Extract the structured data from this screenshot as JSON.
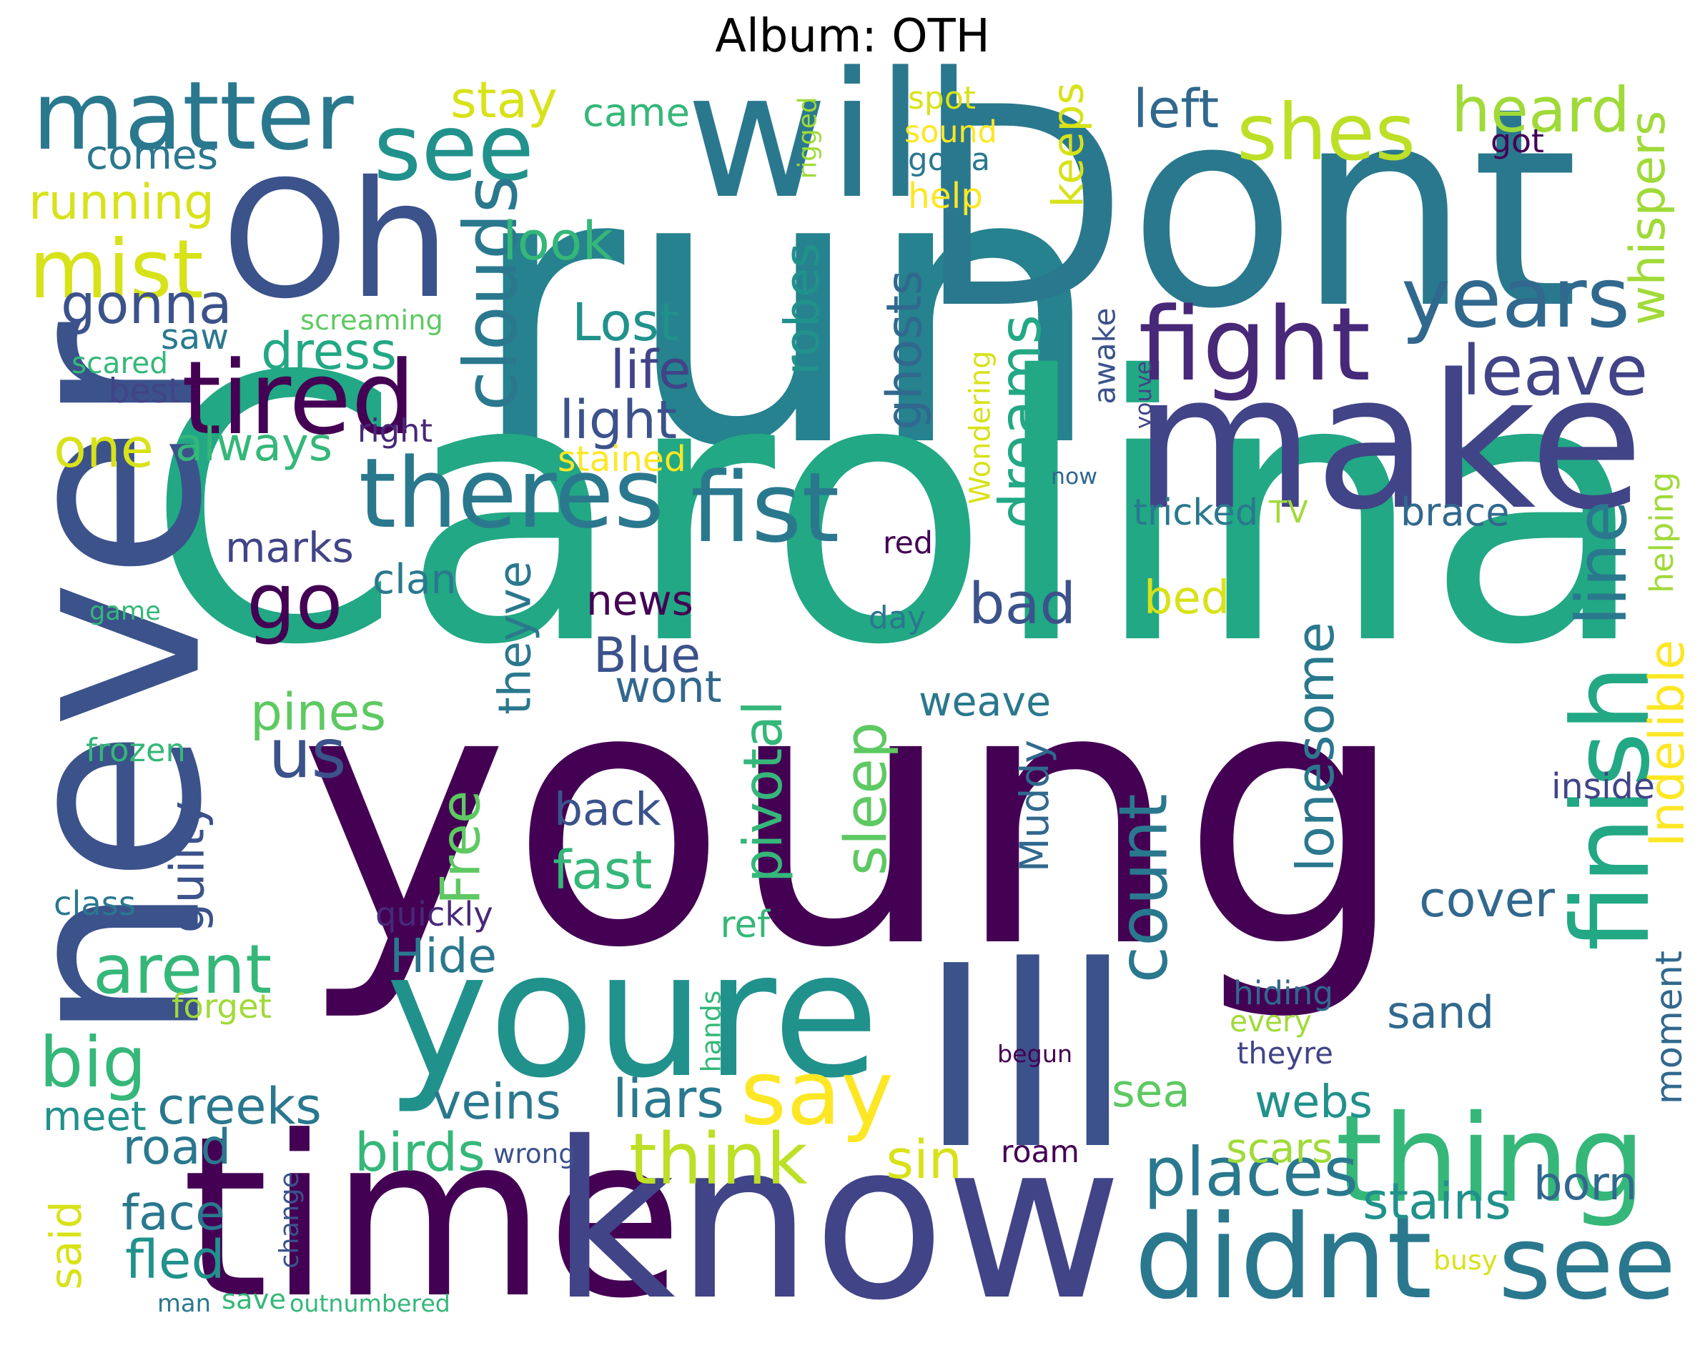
{
  "title": "Album: OTH",
  "words": [
    {
      "text": "young",
      "color": "#440154"
    },
    {
      "text": "run",
      "color": "#26828e"
    },
    {
      "text": "Carolina",
      "color": "#22a884"
    },
    {
      "text": "never",
      "color": "#3b528b"
    },
    {
      "text": "time",
      "color": "#440154"
    },
    {
      "text": "know",
      "color": "#414487"
    },
    {
      "text": "Oh",
      "color": "#3b528b"
    },
    {
      "text": "will",
      "color": "#2a788e"
    },
    {
      "text": "Dont",
      "color": "#2a788e"
    },
    {
      "text": "make",
      "color": "#414487"
    },
    {
      "text": "youre",
      "color": "#21918c"
    },
    {
      "text": "Ill",
      "color": "#3b528b"
    },
    {
      "text": "see",
      "color": "#21918c"
    },
    {
      "text": "see",
      "color": "#2a788e"
    },
    {
      "text": "didnt",
      "color": "#2a788e"
    },
    {
      "text": "thing",
      "color": "#35b779"
    },
    {
      "text": "matter",
      "color": "#2a788e"
    },
    {
      "text": "fight",
      "color": "#482878"
    },
    {
      "text": "years",
      "color": "#31688e"
    },
    {
      "text": "leave",
      "color": "#414487"
    },
    {
      "text": "shes",
      "color": "#bddf26"
    },
    {
      "text": "heard",
      "color": "#a0da39"
    },
    {
      "text": "theres",
      "color": "#2a788e"
    },
    {
      "text": "fist",
      "color": "#2a788e"
    },
    {
      "text": "tired",
      "color": "#440154"
    },
    {
      "text": "mist",
      "color": "#d8e219"
    },
    {
      "text": "gonna",
      "color": "#3b528b"
    },
    {
      "text": "go",
      "color": "#440154"
    },
    {
      "text": "clouds",
      "color": "#2a788e"
    },
    {
      "text": "dreams",
      "color": "#22a884"
    },
    {
      "text": "finish",
      "color": "#22a884"
    },
    {
      "text": "line",
      "color": "#2a788e"
    },
    {
      "text": "lonesome",
      "color": "#2a788e"
    },
    {
      "text": "count",
      "color": "#2a788e"
    },
    {
      "text": "say",
      "color": "#fde725"
    },
    {
      "text": "think",
      "color": "#bddf26"
    },
    {
      "text": "places",
      "color": "#2a788e"
    },
    {
      "text": "sleep",
      "color": "#5ec962"
    },
    {
      "text": "arent",
      "color": "#35b779"
    },
    {
      "text": "big",
      "color": "#35b779"
    },
    {
      "text": "bad",
      "color": "#3b528b"
    },
    {
      "text": "one",
      "color": "#d8e219"
    },
    {
      "text": "us",
      "color": "#3b528b"
    },
    {
      "text": "stay",
      "color": "#d8e219"
    },
    {
      "text": "came",
      "color": "#35b779"
    },
    {
      "text": "comes",
      "color": "#2a788e"
    },
    {
      "text": "running",
      "color": "#d8e219"
    },
    {
      "text": "left",
      "color": "#31688e"
    },
    {
      "text": "keeps",
      "color": "#d8e219"
    },
    {
      "text": "whispers",
      "color": "#a0da39"
    },
    {
      "text": "rigged",
      "color": "#a0da39"
    },
    {
      "text": "spot",
      "color": "#d8e219"
    },
    {
      "text": "sound",
      "color": "#fde725"
    },
    {
      "text": "gotta",
      "color": "#2a788e"
    },
    {
      "text": "help",
      "color": "#fde725"
    },
    {
      "text": "got",
      "color": "#440154"
    },
    {
      "text": "look",
      "color": "#35b779"
    },
    {
      "text": "Lost",
      "color": "#21918c"
    },
    {
      "text": "life",
      "color": "#414487"
    },
    {
      "text": "light",
      "color": "#3b528b"
    },
    {
      "text": "robes",
      "color": "#21918c"
    },
    {
      "text": "ghosts",
      "color": "#31688e"
    },
    {
      "text": "awake",
      "color": "#3b528b"
    },
    {
      "text": "youve",
      "color": "#414487"
    },
    {
      "text": "screaming",
      "color": "#5ec962"
    },
    {
      "text": "saw",
      "color": "#2a788e"
    },
    {
      "text": "dress",
      "color": "#22a884"
    },
    {
      "text": "scared",
      "color": "#35b779"
    },
    {
      "text": "best",
      "color": "#414487"
    },
    {
      "text": "always",
      "color": "#35b779"
    },
    {
      "text": "right",
      "color": "#482878"
    },
    {
      "text": "stained",
      "color": "#fde725"
    },
    {
      "text": "Wondering",
      "color": "#d8e219"
    },
    {
      "text": "now",
      "color": "#31688e"
    },
    {
      "text": "tricked",
      "color": "#2a788e"
    },
    {
      "text": "TV",
      "color": "#a0da39"
    },
    {
      "text": "brace",
      "color": "#31688e"
    },
    {
      "text": "helping",
      "color": "#a0da39"
    },
    {
      "text": "marks",
      "color": "#414487"
    },
    {
      "text": "clan",
      "color": "#2a788e"
    },
    {
      "text": "red",
      "color": "#440154"
    },
    {
      "text": "day",
      "color": "#2a788e"
    },
    {
      "text": "game",
      "color": "#35b779"
    },
    {
      "text": "news",
      "color": "#440154"
    },
    {
      "text": "Blue",
      "color": "#3b528b"
    },
    {
      "text": "wont",
      "color": "#31688e"
    },
    {
      "text": "theyve",
      "color": "#2a788e"
    },
    {
      "text": "bed",
      "color": "#d8e219"
    },
    {
      "text": "weave",
      "color": "#2a788e"
    },
    {
      "text": "pines",
      "color": "#5ec962"
    },
    {
      "text": "frozen",
      "color": "#35b779"
    },
    {
      "text": "guilty",
      "color": "#3b528b"
    },
    {
      "text": "Free",
      "color": "#5ec962"
    },
    {
      "text": "back",
      "color": "#3b528b"
    },
    {
      "text": "fast",
      "color": "#35b779"
    },
    {
      "text": "pivotal",
      "color": "#35b779"
    },
    {
      "text": "Muddy",
      "color": "#31688e"
    },
    {
      "text": "Indelible",
      "color": "#fde725"
    },
    {
      "text": "inside",
      "color": "#414487"
    },
    {
      "text": "cover",
      "color": "#31688e"
    },
    {
      "text": "moment",
      "color": "#31688e"
    },
    {
      "text": "class",
      "color": "#2a788e"
    },
    {
      "text": "quickly",
      "color": "#482878"
    },
    {
      "text": "ref",
      "color": "#35b779"
    },
    {
      "text": "Hide",
      "color": "#2a788e"
    },
    {
      "text": "forget",
      "color": "#a0da39"
    },
    {
      "text": "hands",
      "color": "#35b779"
    },
    {
      "text": "hiding",
      "color": "#31688e"
    },
    {
      "text": "every",
      "color": "#a0da39"
    },
    {
      "text": "begun",
      "color": "#440154"
    },
    {
      "text": "theyre",
      "color": "#414487"
    },
    {
      "text": "sand",
      "color": "#31688e"
    },
    {
      "text": "meet",
      "color": "#21918c"
    },
    {
      "text": "creeks",
      "color": "#2a788e"
    },
    {
      "text": "veins",
      "color": "#2a788e"
    },
    {
      "text": "liars",
      "color": "#2a788e"
    },
    {
      "text": "sea",
      "color": "#5ec962"
    },
    {
      "text": "webs",
      "color": "#21918c"
    },
    {
      "text": "road",
      "color": "#2a788e"
    },
    {
      "text": "birds",
      "color": "#35b779"
    },
    {
      "text": "wrong",
      "color": "#3b528b"
    },
    {
      "text": "sin",
      "color": "#d8e219"
    },
    {
      "text": "roam",
      "color": "#440154"
    },
    {
      "text": "scars",
      "color": "#a0da39"
    },
    {
      "text": "stains",
      "color": "#21918c"
    },
    {
      "text": "born",
      "color": "#31688e"
    },
    {
      "text": "face",
      "color": "#2a788e"
    },
    {
      "text": "fled",
      "color": "#21918c"
    },
    {
      "text": "said",
      "color": "#d8e219"
    },
    {
      "text": "change",
      "color": "#3b528b"
    },
    {
      "text": "busy",
      "color": "#d8e219"
    },
    {
      "text": "man",
      "color": "#2a788e"
    },
    {
      "text": "save",
      "color": "#35b779"
    },
    {
      "text": "outnumbered",
      "color": "#35b779"
    }
  ]
}
